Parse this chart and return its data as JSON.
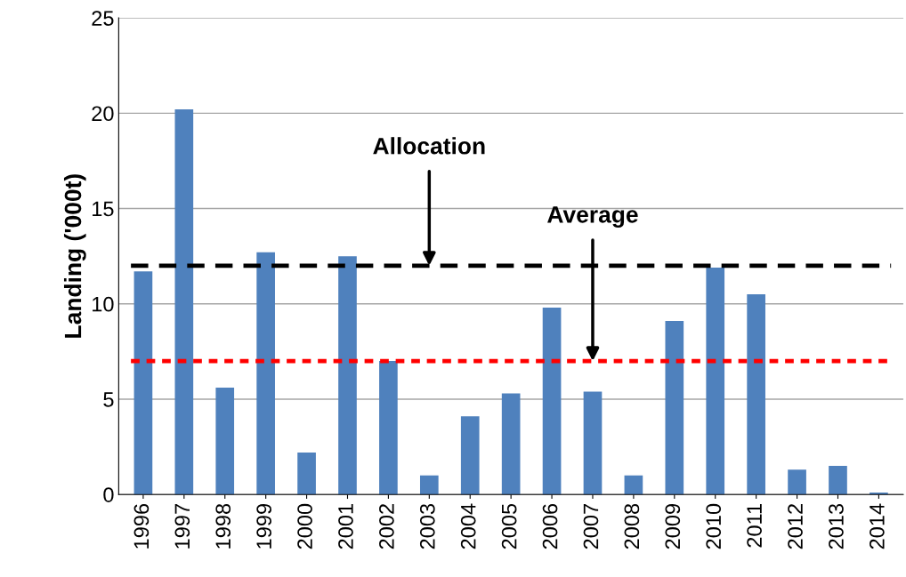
{
  "chart_data": {
    "type": "bar",
    "ylabel": "Landing ('000t)",
    "categories": [
      "1996",
      "1997",
      "1998",
      "1999",
      "2000",
      "2001",
      "2002",
      "2003",
      "2004",
      "2005",
      "2006",
      "2007",
      "2008",
      "2009",
      "2010",
      "2011",
      "2012",
      "2013",
      "2014"
    ],
    "values": [
      11.7,
      20.2,
      5.6,
      12.7,
      2.2,
      12.5,
      7.0,
      1.0,
      4.1,
      5.3,
      9.8,
      5.4,
      1.0,
      9.1,
      11.9,
      10.5,
      1.3,
      1.5,
      0.1
    ],
    "color": "#4f81bd",
    "ylim": [
      0,
      25
    ],
    "yticks": [
      0,
      5,
      10,
      15,
      20,
      25
    ],
    "grid": "y",
    "ref_lines": [
      {
        "axis": "y",
        "value": 12,
        "color": "#000000",
        "line_style": "dashed"
      },
      {
        "axis": "y",
        "value": 7,
        "color": "#ff0000",
        "line_style": "dotted"
      }
    ],
    "annotations": [
      {
        "text": "Allocation",
        "x": "2003",
        "y": 12
      },
      {
        "text": "Average",
        "x": "2007",
        "y": 7
      }
    ]
  }
}
